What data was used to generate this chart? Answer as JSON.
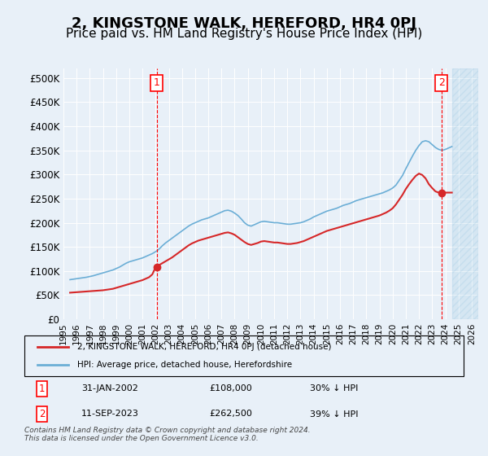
{
  "title": "2, KINGSTONE WALK, HEREFORD, HR4 0PJ",
  "subtitle": "Price paid vs. HM Land Registry's House Price Index (HPI)",
  "title_fontsize": 13,
  "subtitle_fontsize": 11,
  "bg_color": "#e8f0f8",
  "plot_bg_color": "#e8f0f8",
  "hpi_color": "#6baed6",
  "price_color": "#d62728",
  "hatch_color": "#c8d8e8",
  "ylim": [
    0,
    520000
  ],
  "yticks": [
    0,
    50000,
    100000,
    150000,
    200000,
    250000,
    300000,
    350000,
    400000,
    450000,
    500000
  ],
  "ytick_labels": [
    "£0",
    "£50K",
    "£100K",
    "£150K",
    "£200K",
    "£250K",
    "£300K",
    "£350K",
    "£400K",
    "£450K",
    "£500K"
  ],
  "xlim_start": 1995.5,
  "xlim_end": 2026.5,
  "xticks": [
    1995,
    1996,
    1997,
    1998,
    1999,
    2000,
    2001,
    2002,
    2003,
    2004,
    2005,
    2006,
    2007,
    2008,
    2009,
    2010,
    2011,
    2012,
    2013,
    2014,
    2015,
    2016,
    2017,
    2018,
    2019,
    2020,
    2021,
    2022,
    2023,
    2024,
    2025,
    2026
  ],
  "sale1_date": 2002.08,
  "sale1_price": 108000,
  "sale1_label": "1",
  "sale2_date": 2023.7,
  "sale2_price": 262500,
  "sale2_label": "2",
  "legend_line1": "2, KINGSTONE WALK, HEREFORD, HR4 0PJ (detached house)",
  "legend_line2": "HPI: Average price, detached house, Herefordshire",
  "annotation1": "1    31-JAN-2002         £108,000        30% ↓ HPI",
  "annotation2": "2    11-SEP-2023         £262,500        39% ↓ HPI",
  "footer": "Contains HM Land Registry data © Crown copyright and database right 2024.\nThis data is licensed under the Open Government Licence v3.0.",
  "hpi_data_x": [
    1995.5,
    1995.75,
    1996.0,
    1996.25,
    1996.5,
    1996.75,
    1997.0,
    1997.25,
    1997.5,
    1997.75,
    1998.0,
    1998.25,
    1998.5,
    1998.75,
    1999.0,
    1999.25,
    1999.5,
    1999.75,
    2000.0,
    2000.25,
    2000.5,
    2000.75,
    2001.0,
    2001.25,
    2001.5,
    2001.75,
    2002.0,
    2002.25,
    2002.5,
    2002.75,
    2003.0,
    2003.25,
    2003.5,
    2003.75,
    2004.0,
    2004.25,
    2004.5,
    2004.75,
    2005.0,
    2005.25,
    2005.5,
    2005.75,
    2006.0,
    2006.25,
    2006.5,
    2006.75,
    2007.0,
    2007.25,
    2007.5,
    2007.75,
    2008.0,
    2008.25,
    2008.5,
    2008.75,
    2009.0,
    2009.25,
    2009.5,
    2009.75,
    2010.0,
    2010.25,
    2010.5,
    2010.75,
    2011.0,
    2011.25,
    2011.5,
    2011.75,
    2012.0,
    2012.25,
    2012.5,
    2012.75,
    2013.0,
    2013.25,
    2013.5,
    2013.75,
    2014.0,
    2014.25,
    2014.5,
    2014.75,
    2015.0,
    2015.25,
    2015.5,
    2015.75,
    2016.0,
    2016.25,
    2016.5,
    2016.75,
    2017.0,
    2017.25,
    2017.5,
    2017.75,
    2018.0,
    2018.25,
    2018.5,
    2018.75,
    2019.0,
    2019.25,
    2019.5,
    2019.75,
    2020.0,
    2020.25,
    2020.5,
    2020.75,
    2021.0,
    2021.25,
    2021.5,
    2021.75,
    2022.0,
    2022.25,
    2022.5,
    2022.75,
    2023.0,
    2023.25,
    2023.5,
    2023.75,
    2024.0,
    2024.25,
    2024.5
  ],
  "hpi_data_y": [
    82000,
    83000,
    84000,
    85000,
    86000,
    87000,
    88500,
    90000,
    92000,
    94000,
    96000,
    98000,
    100000,
    102000,
    105000,
    108000,
    112000,
    116000,
    119000,
    121000,
    123000,
    125000,
    127000,
    130000,
    133000,
    136000,
    140000,
    145000,
    152000,
    158000,
    163000,
    168000,
    173000,
    178000,
    183000,
    188000,
    193000,
    197000,
    200000,
    203000,
    206000,
    208000,
    210000,
    213000,
    216000,
    219000,
    222000,
    225000,
    226000,
    224000,
    220000,
    215000,
    208000,
    200000,
    195000,
    193000,
    196000,
    199000,
    202000,
    203000,
    202000,
    201000,
    200000,
    200000,
    199000,
    198000,
    197000,
    197000,
    198000,
    199000,
    200000,
    202000,
    205000,
    208000,
    212000,
    215000,
    218000,
    221000,
    224000,
    226000,
    228000,
    230000,
    233000,
    236000,
    238000,
    240000,
    243000,
    246000,
    248000,
    250000,
    252000,
    254000,
    256000,
    258000,
    260000,
    262000,
    265000,
    268000,
    272000,
    278000,
    288000,
    298000,
    312000,
    325000,
    338000,
    350000,
    360000,
    368000,
    370000,
    368000,
    362000,
    356000,
    352000,
    350000,
    352000,
    355000,
    358000
  ],
  "price_data_x": [
    1995.5,
    1995.75,
    1996.0,
    1996.25,
    1996.5,
    1996.75,
    1997.0,
    1997.25,
    1997.5,
    1997.75,
    1998.0,
    1998.25,
    1998.5,
    1998.75,
    1999.0,
    1999.25,
    1999.5,
    1999.75,
    2000.0,
    2000.25,
    2000.5,
    2000.75,
    2001.0,
    2001.25,
    2001.5,
    2001.75,
    2002.0,
    2002.25,
    2002.5,
    2002.75,
    2003.0,
    2003.25,
    2003.5,
    2003.75,
    2004.0,
    2004.25,
    2004.5,
    2004.75,
    2005.0,
    2005.25,
    2005.5,
    2005.75,
    2006.0,
    2006.25,
    2006.5,
    2006.75,
    2007.0,
    2007.25,
    2007.5,
    2007.75,
    2008.0,
    2008.25,
    2008.5,
    2008.75,
    2009.0,
    2009.25,
    2009.5,
    2009.75,
    2010.0,
    2010.25,
    2010.5,
    2010.75,
    2011.0,
    2011.25,
    2011.5,
    2011.75,
    2012.0,
    2012.25,
    2012.5,
    2012.75,
    2013.0,
    2013.25,
    2013.5,
    2013.75,
    2014.0,
    2014.25,
    2014.5,
    2014.75,
    2015.0,
    2015.25,
    2015.5,
    2015.75,
    2016.0,
    2016.25,
    2016.5,
    2016.75,
    2017.0,
    2017.25,
    2017.5,
    2017.75,
    2018.0,
    2018.25,
    2018.5,
    2018.75,
    2019.0,
    2019.25,
    2019.5,
    2019.75,
    2020.0,
    2020.25,
    2020.5,
    2020.75,
    2021.0,
    2021.25,
    2021.5,
    2021.75,
    2022.0,
    2022.25,
    2022.5,
    2022.75,
    2023.0,
    2023.25,
    2023.5,
    2023.75,
    2024.0,
    2024.25,
    2024.5
  ],
  "price_data_y": [
    55000,
    55500,
    56000,
    56500,
    57000,
    57500,
    58000,
    58500,
    59000,
    59500,
    60000,
    61000,
    62000,
    63000,
    65000,
    67000,
    69000,
    71000,
    73000,
    75000,
    77000,
    79000,
    81000,
    84000,
    87000,
    93000,
    108000,
    112000,
    116000,
    120000,
    124000,
    128000,
    133000,
    138000,
    143000,
    148000,
    153000,
    157000,
    160000,
    163000,
    165000,
    167000,
    169000,
    171000,
    173000,
    175000,
    177000,
    179000,
    180000,
    178000,
    175000,
    170000,
    165000,
    160000,
    156000,
    154000,
    156000,
    158000,
    161000,
    162000,
    161000,
    160000,
    159000,
    159000,
    158000,
    157000,
    156000,
    156000,
    157000,
    158000,
    160000,
    162000,
    165000,
    168000,
    171000,
    174000,
    177000,
    180000,
    183000,
    185000,
    187000,
    189000,
    191000,
    193000,
    195000,
    197000,
    199000,
    201000,
    203000,
    205000,
    207000,
    209000,
    211000,
    213000,
    215000,
    218000,
    221000,
    225000,
    230000,
    238000,
    248000,
    258000,
    270000,
    280000,
    289000,
    297000,
    302000,
    299000,
    292000,
    280000,
    272000,
    265000,
    262500,
    262500,
    262500,
    262500,
    262500
  ]
}
